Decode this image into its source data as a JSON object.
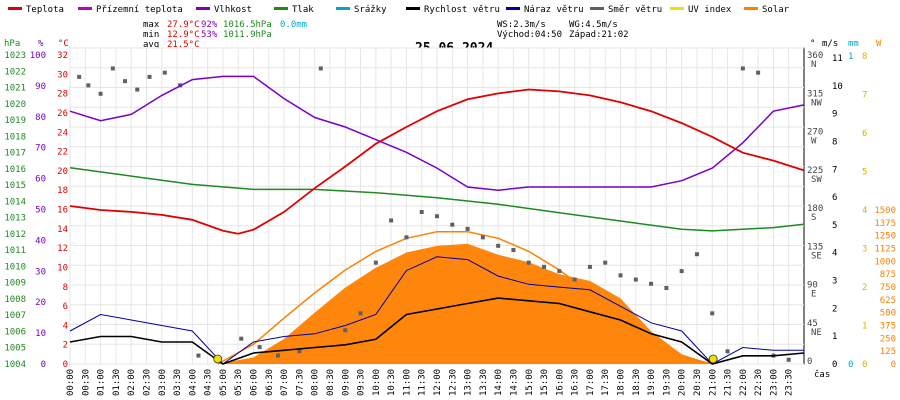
{
  "chart_data": {
    "type": "line",
    "date_title": "25.06.2024",
    "legend": [
      {
        "label": "Teplota",
        "color": "#e00000"
      },
      {
        "label": "Přízemní teplota",
        "color": "#c000c0"
      },
      {
        "label": "Vlhkost",
        "color": "#7a00c8"
      },
      {
        "label": "Tlak",
        "color": "#1f8a1f"
      },
      {
        "label": "Srážky",
        "color": "#00a8cc"
      },
      {
        "label": "Rychlost větru",
        "color": "#000000"
      },
      {
        "label": "Náraz větru",
        "color": "#0000a0"
      },
      {
        "label": "Směr větru",
        "color": "#606060"
      },
      {
        "label": "UV index",
        "color": "#f0e000"
      },
      {
        "label": "Solar",
        "color": "#ff8000"
      }
    ],
    "stats": {
      "max": {
        "label": "max",
        "temp": "27.9°C",
        "hum": "92%",
        "press": "1016.5hPa",
        "rain": "0.0mm"
      },
      "min": {
        "label": "min",
        "temp": "12.9°C",
        "hum": "53%",
        "press": "1011.9hPa"
      },
      "avg": {
        "label": "avg",
        "temp": "21.5°C"
      },
      "wind": {
        "ws": "WS:2.3m/s",
        "wg": "WG:4.5m/s",
        "sunrise": "Východ:04:50",
        "sunset": "Západ:21:02"
      }
    },
    "axes": {
      "hpa_unit": "hPa",
      "pct_unit": "%",
      "temp_unit": "°C",
      "dir_unit": "°",
      "ms_unit": "m/s",
      "mm_unit": "mm",
      "w_unit": "W",
      "x_unit": "čas",
      "hpa_ticks": [
        "1023",
        "1022",
        "1021",
        "1020",
        "1019",
        "1018",
        "1017",
        "1016",
        "1015",
        "1014",
        "1013",
        "1012",
        "1011",
        "1010",
        "1009",
        "1008",
        "1007",
        "1006",
        "1005",
        "1004"
      ],
      "pct_ticks": [
        "100",
        "90",
        "80",
        "70",
        "60",
        "50",
        "40",
        "30",
        "20",
        "10",
        "0"
      ],
      "temp_ticks": [
        "32",
        "30",
        "28",
        "26",
        "24",
        "22",
        "20",
        "18",
        "16",
        "14",
        "12",
        "10",
        "8",
        "6",
        "4",
        "2",
        "0"
      ],
      "dir_ticks": [
        {
          "deg": "360",
          "dir": "N"
        },
        {
          "deg": "315",
          "dir": "NW"
        },
        {
          "deg": "270",
          "dir": "W"
        },
        {
          "deg": "225",
          "dir": "SW"
        },
        {
          "deg": "180",
          "dir": "S"
        },
        {
          "deg": "135",
          "dir": "SE"
        },
        {
          "deg": "90",
          "dir": "E"
        },
        {
          "deg": "45",
          "dir": "NE"
        },
        {
          "deg": "0",
          "dir": ""
        }
      ],
      "ms_ticks": [
        "11",
        "10",
        "9",
        "8",
        "7",
        "6",
        "5",
        "4",
        "3",
        "2",
        "1",
        "0"
      ],
      "mm_ticks": [
        "1",
        "0"
      ],
      "uv_ticks": [
        "8",
        "7",
        "6",
        "5",
        "4",
        "3",
        "2",
        "1",
        "0"
      ],
      "solar_ticks": [
        "1500",
        "1375",
        "1250",
        "1125",
        "1000",
        "875",
        "750",
        "625",
        "500",
        "375",
        "250",
        "125",
        "0"
      ],
      "x_ticks": [
        "00:00",
        "00:30",
        "01:00",
        "01:30",
        "02:00",
        "02:30",
        "03:00",
        "03:30",
        "04:00",
        "04:30",
        "05:00",
        "05:30",
        "06:00",
        "06:30",
        "07:00",
        "07:30",
        "08:00",
        "08:30",
        "09:00",
        "09:30",
        "10:00",
        "10:30",
        "11:00",
        "11:30",
        "12:00",
        "12:30",
        "13:00",
        "13:30",
        "14:00",
        "14:30",
        "15:00",
        "15:30",
        "16:00",
        "16:30",
        "17:00",
        "17:30",
        "18:00",
        "18:30",
        "19:00",
        "19:30",
        "20:00",
        "20:30",
        "21:00",
        "21:30",
        "22:00",
        "22:30",
        "23:00",
        "23:30"
      ]
    },
    "temperature": {
      "x_hours": [
        0,
        1,
        2,
        3,
        4,
        5,
        5.5,
        6,
        7,
        8,
        9,
        10,
        11,
        12,
        13,
        14,
        15,
        16,
        17,
        18,
        19,
        20,
        21,
        22,
        23,
        24
      ],
      "y_c": [
        16,
        15.6,
        15.4,
        15.1,
        14.6,
        13.5,
        13.2,
        13.6,
        15.4,
        17.8,
        20,
        22.3,
        24,
        25.6,
        26.8,
        27.4,
        27.8,
        27.6,
        27.2,
        26.5,
        25.6,
        24.4,
        23,
        21.4,
        20.6,
        19.6
      ]
    },
    "humidity": {
      "x_hours": [
        0,
        1,
        2,
        3,
        4,
        5,
        6,
        7,
        8,
        9,
        10,
        11,
        12,
        13,
        14,
        15,
        16,
        17,
        18,
        19,
        20,
        21,
        22,
        23,
        24
      ],
      "y_pct": [
        80,
        77,
        79,
        85,
        90,
        91,
        91,
        84,
        78,
        75,
        71,
        67,
        62,
        56,
        55,
        56,
        56,
        56,
        56,
        56,
        58,
        62,
        70,
        80,
        82
      ]
    },
    "pressure": {
      "x_hours": [
        0,
        2,
        4,
        6,
        8,
        10,
        12,
        14,
        16,
        18,
        20,
        21,
        22,
        23,
        24
      ],
      "y_hpa": [
        1015.8,
        1015.3,
        1014.8,
        1014.5,
        1014.5,
        1014.3,
        1014,
        1013.6,
        1013.1,
        1012.6,
        1012.1,
        1012,
        1012.1,
        1012.2,
        1012.4
      ]
    },
    "solar": {
      "x_hours": [
        4.83,
        6,
        7,
        8,
        9,
        10,
        11,
        12,
        13,
        14,
        15,
        16,
        17,
        18,
        19,
        20,
        21
      ],
      "y_wm2": [
        0,
        60,
        230,
        470,
        700,
        880,
        1020,
        1080,
        1100,
        1000,
        930,
        820,
        760,
        600,
        300,
        90,
        0
      ]
    },
    "solar_theory": {
      "x_hours": [
        4.83,
        6,
        7,
        8,
        9,
        10,
        11,
        12,
        13,
        14,
        15,
        16,
        17,
        18,
        19,
        20,
        21.03
      ],
      "y_wm2": [
        0,
        180,
        420,
        650,
        860,
        1030,
        1150,
        1210,
        1210,
        1150,
        1030,
        860,
        650,
        420,
        190,
        60,
        0
      ]
    },
    "wind_speed": {
      "x_hours": [
        0,
        1,
        2,
        3,
        4,
        5,
        6,
        7,
        8,
        9,
        10,
        11,
        12,
        13,
        14,
        15,
        16,
        17,
        18,
        19,
        20,
        21,
        22,
        23,
        24
      ],
      "y_ms": [
        0.8,
        1.0,
        1.0,
        0.8,
        0.8,
        0,
        0.4,
        0.5,
        0.6,
        0.7,
        0.9,
        1.8,
        2.0,
        2.2,
        2.4,
        2.3,
        2.2,
        1.9,
        1.6,
        1.1,
        0.8,
        0,
        0.3,
        0.3,
        0.4
      ]
    },
    "wind_gust": {
      "x_hours": [
        0,
        1,
        2,
        3,
        4,
        5,
        6,
        7,
        8,
        9,
        10,
        11,
        12,
        13,
        14,
        15,
        16,
        17,
        18,
        19,
        20,
        21,
        22,
        23,
        24
      ],
      "y_ms": [
        1.2,
        1.8,
        1.6,
        1.4,
        1.2,
        0,
        0.8,
        1.0,
        1.1,
        1.4,
        1.8,
        3.4,
        3.9,
        3.8,
        3.2,
        2.9,
        2.8,
        2.7,
        2.1,
        1.5,
        1.2,
        0,
        0.6,
        0.5,
        0.5
      ]
    },
    "uv_markers": {
      "x_hours": [
        4.83,
        21.03
      ],
      "y": [
        0,
        0
      ]
    },
    "wind_dir": {
      "x_hours": [
        0.3,
        0.6,
        1.0,
        1.4,
        1.8,
        2.2,
        2.6,
        3.1,
        3.6,
        4.2,
        4.8,
        5.6,
        6.2,
        6.8,
        7.5,
        8.2,
        9,
        9.5,
        10,
        10.5,
        11,
        11.5,
        12,
        12.5,
        13,
        13.5,
        14,
        14.5,
        15,
        15.5,
        16,
        16.5,
        17,
        17.5,
        18,
        18.5,
        19,
        19.5,
        20,
        20.5,
        21,
        21.5,
        22,
        22.5,
        23,
        23.5
      ],
      "y_deg": [
        340,
        330,
        320,
        350,
        335,
        325,
        340,
        345,
        330,
        10,
        5,
        30,
        20,
        10,
        15,
        350,
        40,
        60,
        120,
        170,
        150,
        180,
        175,
        165,
        160,
        150,
        140,
        135,
        120,
        115,
        110,
        100,
        115,
        120,
        105,
        100,
        95,
        90,
        110,
        130,
        60,
        15,
        350,
        345,
        10,
        5
      ]
    }
  }
}
